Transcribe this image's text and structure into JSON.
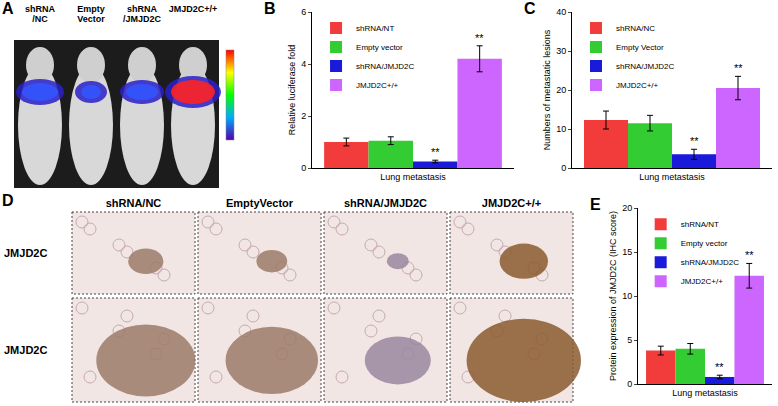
{
  "panel_letters": {
    "mice": "A",
    "ihc": "D",
    "charts": [
      "B",
      "C",
      "E"
    ]
  },
  "image_panels": {
    "mice": {
      "labels": [
        [
          "shRNA",
          "/NC"
        ],
        [
          "Empty",
          "Vector"
        ],
        [
          "shRNA",
          "/JMJD2C"
        ],
        [
          "JMJD2C+/+"
        ]
      ]
    },
    "ihc": {
      "columns": [
        "shRNA/NC",
        "EmptyVector",
        "shRNA/JMJD2C",
        "JMJD2C+/+"
      ],
      "rows": [
        "JMJD2C",
        "JMJD2C"
      ]
    }
  },
  "chart_data": [
    {
      "type": "bar",
      "categories": [
        "Lung metastasis"
      ],
      "y_label": "Relative luciferase fold",
      "ylim": [
        0,
        6
      ],
      "yticks": [
        0,
        2,
        4,
        6
      ],
      "grid": false,
      "legend": "upper left",
      "series": [
        {
          "name": "shRNA/NT",
          "color": "#f23c3c",
          "values": [
            1.0
          ],
          "error": [
            0.15
          ]
        },
        {
          "name": "Empty vector",
          "color": "#33cc33",
          "values": [
            1.05
          ],
          "error": [
            0.15
          ]
        },
        {
          "name": "shRNA/JMJD2C",
          "color": "#1a1adb",
          "values": [
            0.25
          ],
          "error": [
            0.05
          ]
        },
        {
          "name": "JMJD2C+/+",
          "color": "#cc66ff",
          "values": [
            4.2
          ],
          "error": [
            0.5
          ]
        }
      ],
      "annotations": [
        {
          "series": "shRNA/JMJD2C",
          "text": "**"
        },
        {
          "series": "JMJD2C+/+",
          "text": "**"
        }
      ]
    },
    {
      "type": "bar",
      "categories": [
        "Lung metastasis"
      ],
      "y_label": "Numbers of metastatic lesions",
      "ylim": [
        0,
        40
      ],
      "yticks": [
        0,
        10,
        20,
        30,
        40
      ],
      "grid": false,
      "legend": "upper left",
      "series": [
        {
          "name": "shRNA/NC",
          "color": "#f23c3c",
          "values": [
            12.3
          ],
          "error": [
            2.3
          ]
        },
        {
          "name": "Empty Vector",
          "color": "#33cc33",
          "values": [
            11.5
          ],
          "error": [
            2.0
          ]
        },
        {
          "name": "shRNA/JMJD2C",
          "color": "#1a1adb",
          "values": [
            3.5
          ],
          "error": [
            1.3
          ]
        },
        {
          "name": "JMJD2C+/+",
          "color": "#cc66ff",
          "values": [
            20.5
          ],
          "error": [
            3.0
          ]
        }
      ],
      "annotations": [
        {
          "series": "shRNA/JMJD2C",
          "text": "**"
        },
        {
          "series": "JMJD2C+/+",
          "text": "**"
        }
      ]
    },
    {
      "type": "bar",
      "categories": [
        "Lung metastasis"
      ],
      "y_label": "Protein expression of JMJD2C (IHC score)",
      "ylim": [
        0,
        20
      ],
      "yticks": [
        0,
        5,
        10,
        15,
        20
      ],
      "grid": false,
      "legend": "upper left",
      "series": [
        {
          "name": "shRNA/NT",
          "color": "#f23c3c",
          "values": [
            3.8
          ],
          "error": [
            0.5
          ]
        },
        {
          "name": "Empty vector",
          "color": "#33cc33",
          "values": [
            4.0
          ],
          "error": [
            0.6
          ]
        },
        {
          "name": "shRNA/JMJD2C",
          "color": "#1a1adb",
          "values": [
            0.8
          ],
          "error": [
            0.2
          ]
        },
        {
          "name": "JMJD2C+/+",
          "color": "#cc66ff",
          "values": [
            12.3
          ],
          "error": [
            1.4
          ]
        }
      ],
      "annotations": [
        {
          "series": "shRNA/JMJD2C",
          "text": "**"
        },
        {
          "series": "JMJD2C+/+",
          "text": "**"
        }
      ]
    }
  ]
}
